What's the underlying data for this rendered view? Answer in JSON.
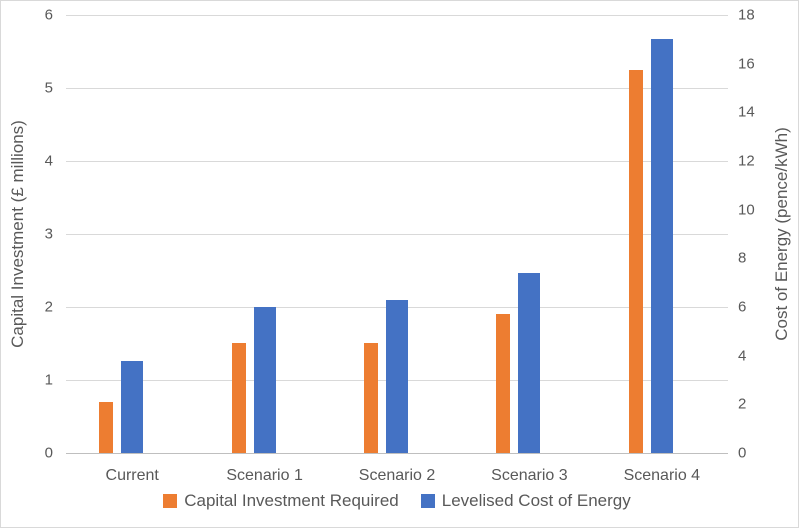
{
  "frame": {
    "background": "#ffffff",
    "border_color": "#d9d9d9"
  },
  "chart_data": {
    "type": "bar",
    "subtype": "grouped-dual-axis",
    "categories": [
      "Current",
      "Scenario 1",
      "Scenario 2",
      "Scenario 3",
      "Scenario 4"
    ],
    "series": [
      {
        "name": "Capital Investment Required",
        "axis": "left",
        "color": "#ED7D31",
        "values": [
          0.7,
          1.5,
          1.5,
          1.9,
          5.25
        ]
      },
      {
        "name": "Levelised Cost of Energy",
        "axis": "right",
        "color": "#4472C4",
        "values": [
          3.8,
          6.0,
          6.3,
          7.4,
          17.0
        ]
      }
    ],
    "left_axis": {
      "label": "Capital Investment (£ millions)",
      "min": 0,
      "max": 6,
      "tick_step": 1,
      "ticks": [
        0,
        1,
        2,
        3,
        4,
        5,
        6
      ]
    },
    "right_axis": {
      "label": "Cost of Energy (pence/kWh)",
      "min": 0,
      "max": 18,
      "tick_step": 2,
      "ticks": [
        0,
        2,
        4,
        6,
        8,
        10,
        12,
        14,
        16,
        18
      ]
    },
    "grid": true,
    "gridline_color": "#d9d9d9",
    "axis_line_color": "#bfbfbf",
    "text_color": "#595959",
    "legend_position": "bottom"
  }
}
